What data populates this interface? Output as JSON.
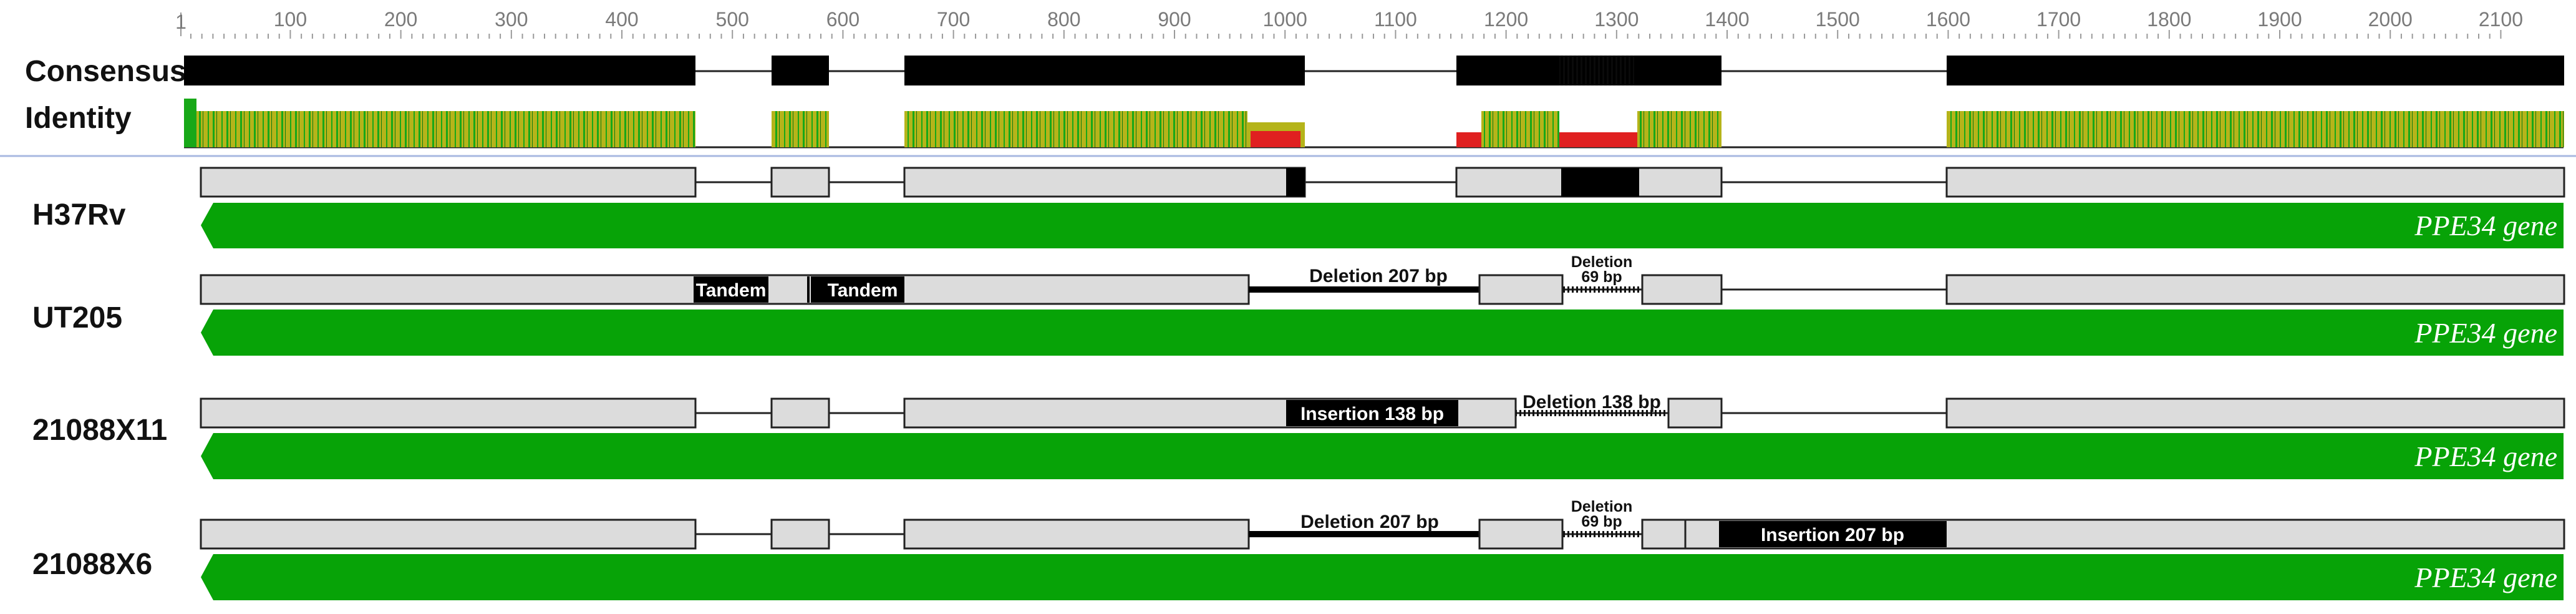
{
  "ruler": {
    "start_label": "1",
    "ticks": [
      "100",
      "200",
      "300",
      "400",
      "500",
      "600",
      "700",
      "800",
      "900",
      "1000",
      "1100",
      "1200",
      "1300",
      "1400",
      "1500",
      "1600",
      "1700",
      "1800",
      "1900",
      "2000",
      "2100"
    ]
  },
  "consensus": {
    "label": "Consensus"
  },
  "identity": {
    "label": "Identity"
  },
  "tracks": [
    {
      "name": "H37Rv",
      "gene_label": "PPE34 gene"
    },
    {
      "name": "UT205",
      "gene_label": "PPE34 gene",
      "annotations": {
        "tandem_1": "Tandem",
        "tandem_2": "Tandem",
        "deletion_1": "Deletion 207 bp",
        "deletion_2_line1": "Deletion",
        "deletion_2_line2": "69 bp"
      }
    },
    {
      "name": "21088X11",
      "gene_label": "PPE34 gene",
      "annotations": {
        "insertion": "Insertion 138 bp",
        "deletion": "Deletion 138 bp"
      }
    },
    {
      "name": "21088X6",
      "gene_label": "PPE34 gene",
      "annotations": {
        "deletion_1": "Deletion 207 bp",
        "deletion_2_line1": "Deletion",
        "deletion_2_line2": "69 bp",
        "insertion": "Insertion 207 bp"
      }
    }
  ],
  "colors": {
    "gene": "#07a307",
    "segment": "#dcdcdc",
    "identity_olive": "#b5b41a",
    "identity_green": "#18a818",
    "identity_red": "#e02020",
    "separator": "#a8b8e0"
  }
}
